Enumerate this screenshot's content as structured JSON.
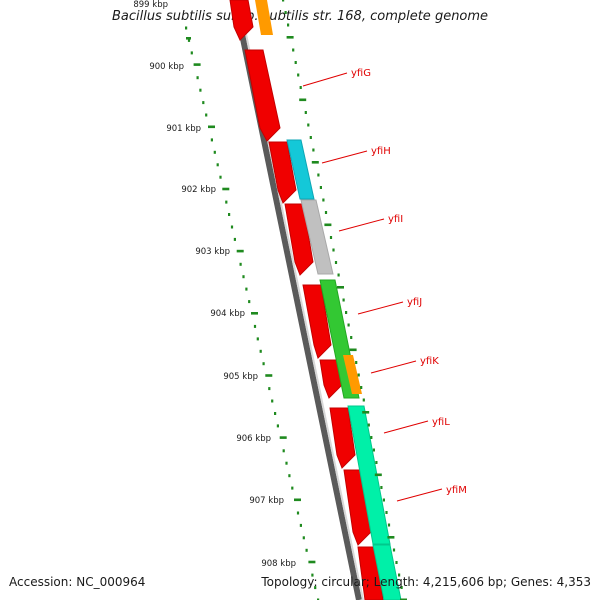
{
  "title": "Bacillus subtilis subsp. subtilis str. 168, complete genome",
  "footer": {
    "accession": "Accession: NC_000964",
    "summary": "Topology: circular; Length: 4,215,606 bp; Genes: 4,353"
  },
  "colors": {
    "background": "#ffffff",
    "backbone": "#808080",
    "cds_red": "#f00000",
    "ticks": "#1f8a1f",
    "label_red": "#e00000",
    "orange": "#ff9a00",
    "cyan": "#14c8d8",
    "gray_gene": "#c0c0c0",
    "green_gene": "#33c833",
    "teal_gene": "#00f0a8"
  },
  "scale_labels": [
    "899 kbp",
    "900 kbp",
    "901 kbp",
    "902 kbp",
    "903 kbp",
    "904 kbp",
    "905 kbp",
    "906 kbp",
    "907 kbp",
    "908 kbp"
  ],
  "gene_labels": [
    "yfiG",
    "yfiH",
    "yfiI",
    "yfiJ",
    "yfiK",
    "yfiL",
    "yfiM"
  ]
}
